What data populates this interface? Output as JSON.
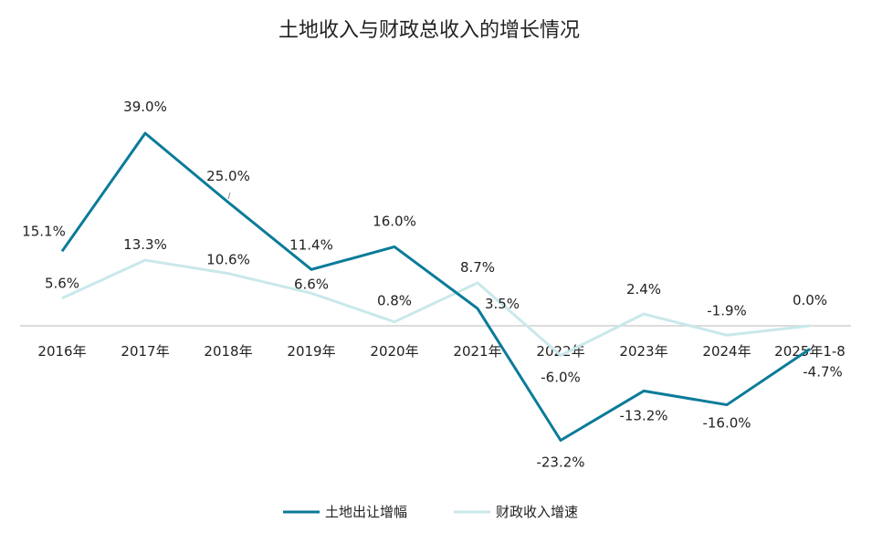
{
  "chart_data": {
    "type": "line",
    "title": "土地收入与财政总收入的增长情况",
    "categories": [
      "2016年",
      "2017年",
      "2018年",
      "2019年",
      "2020年",
      "2021年",
      "2022年",
      "2023年",
      "2024年",
      "2025年1-8"
    ],
    "series": [
      {
        "name": "土地出让增幅",
        "color": "#0b7b99",
        "values": [
          15.1,
          39.0,
          25.0,
          11.4,
          16.0,
          3.5,
          -23.2,
          -13.2,
          -16.0,
          -4.7
        ],
        "labels": [
          "15.1%",
          "39.0%",
          "25.0%",
          "11.4%",
          "16.0%",
          "3.5%",
          "-23.2%",
          "-13.2%",
          "-16.0%",
          "-4.7%"
        ]
      },
      {
        "name": "财政收入增速",
        "color": "#c9e8ea",
        "values": [
          5.6,
          13.3,
          10.6,
          6.6,
          0.8,
          8.7,
          -6.0,
          2.4,
          -1.9,
          0.0
        ],
        "labels": [
          "5.6%",
          "13.3%",
          "10.6%",
          "6.6%",
          "0.8%",
          "8.7%",
          "-6.0%",
          "2.4%",
          "-1.9%",
          "0.0%"
        ]
      }
    ],
    "axis_color": "#d0d0d0",
    "grid": false,
    "legend": "bottom"
  }
}
